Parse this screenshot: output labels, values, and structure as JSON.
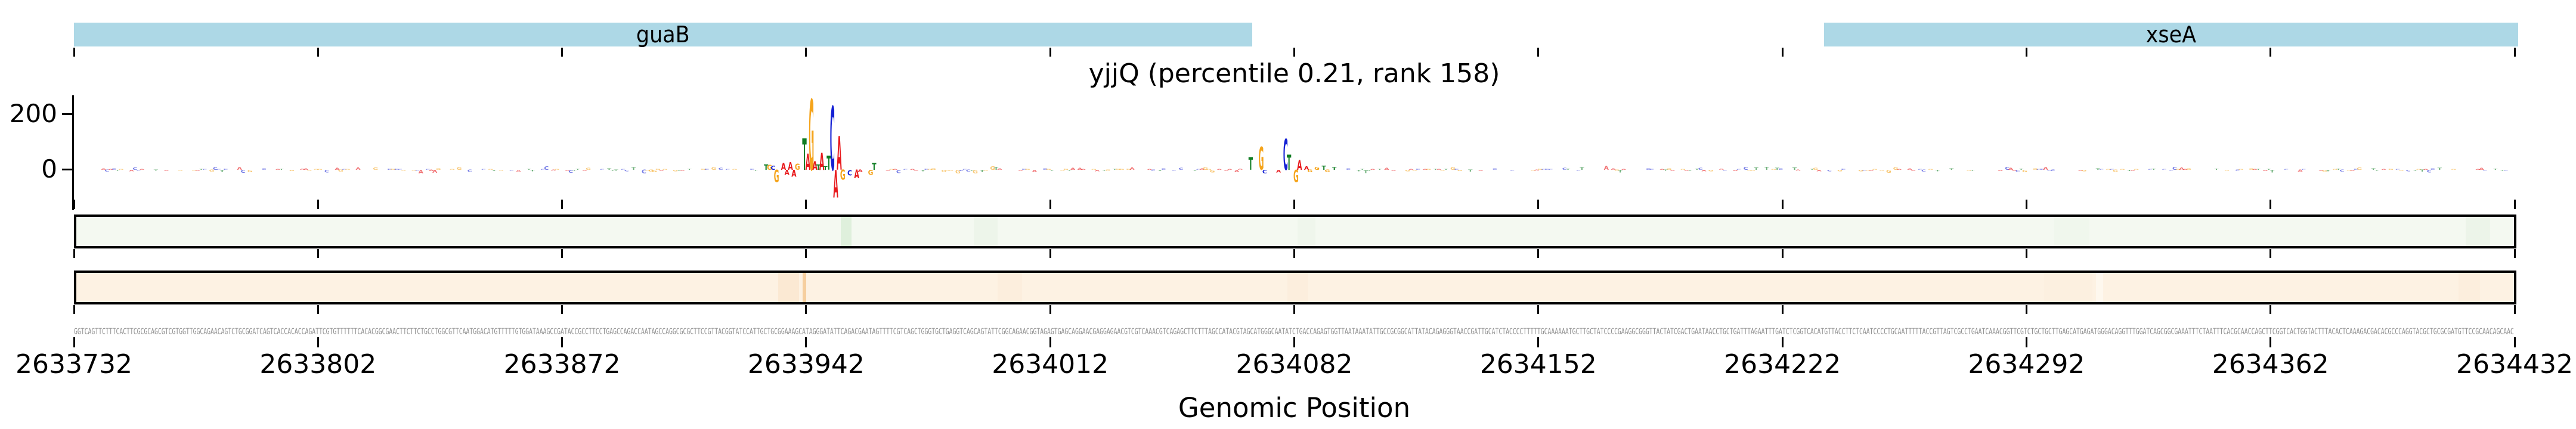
{
  "figure": {
    "title": "yjjQ (percentile 0.21, rank 158)",
    "xlabel": "Genomic Position"
  },
  "colors": {
    "gene_bar": "#add8e6",
    "axis": "#000000",
    "sequence_text": "#8c8c8c",
    "base_A": "#e8191c",
    "base_C": "#1420d4",
    "base_G": "#f5a41b",
    "base_T": "#0f7d23",
    "track_green_fill": "#f4f9f1",
    "track_orange_fill": "#fdf2e3"
  },
  "genes": [
    {
      "name": "guaB",
      "start": 2633732,
      "end": 2634070
    },
    {
      "name": "xseA",
      "start": 2634234,
      "end": 2634433
    }
  ],
  "x_axis": {
    "start": 2633732,
    "end": 2634432,
    "tick_labels": [
      "2633732",
      "2633802",
      "2633872",
      "2633942",
      "2634012",
      "2634082",
      "2634152",
      "2634222",
      "2634292",
      "2634362",
      "2634432"
    ]
  },
  "y_axis": {
    "tick_labels": [
      "200",
      "0"
    ],
    "tick_values": [
      200,
      0
    ]
  },
  "chart_data": {
    "type": "genomic-attribution-logo",
    "title": "yjjQ (percentile 0.21, rank 158)",
    "xlabel": "Genomic Position",
    "x_range": [
      2633732,
      2634432
    ],
    "ylim": [
      -140,
      270
    ],
    "y_ticks": [
      0,
      200
    ],
    "gene_annotations": [
      {
        "name": "guaB",
        "start": 2633732,
        "end": 2634070
      },
      {
        "name": "xseA",
        "start": 2634234,
        "end": 2634433
      }
    ],
    "attribution_letters": [
      [
        2633930,
        "T",
        20
      ],
      [
        2633931,
        "G",
        18
      ],
      [
        2633932,
        "C",
        15
      ],
      [
        2633933,
        "G",
        -45
      ],
      [
        2633935,
        "A",
        25
      ],
      [
        2633936,
        "A",
        -18
      ],
      [
        2633937,
        "A",
        28
      ],
      [
        2633938,
        "A",
        -25
      ],
      [
        2633939,
        "G",
        22
      ],
      [
        2633941,
        "T",
        114
      ],
      [
        2633942,
        "A",
        58
      ],
      [
        2633943,
        "G",
        255
      ],
      [
        2633944,
        "A",
        30
      ],
      [
        2633945,
        "T",
        20
      ],
      [
        2633946,
        "A",
        62
      ],
      [
        2633947,
        "T",
        12
      ],
      [
        2633948,
        "T",
        50
      ],
      [
        2633949,
        "C",
        230
      ],
      [
        2633950,
        "A",
        -100
      ],
      [
        2633951,
        "A",
        122
      ],
      [
        2633952,
        "G",
        -36
      ],
      [
        2633954,
        "C",
        -20
      ],
      [
        2633956,
        "A",
        -30
      ],
      [
        2633957,
        "A",
        -8
      ],
      [
        2633960,
        "G",
        -18
      ],
      [
        2633961,
        "T",
        25
      ],
      [
        2634069,
        "T",
        45
      ],
      [
        2634072,
        "G",
        82
      ],
      [
        2634073,
        "C",
        -13
      ],
      [
        2634077,
        "A",
        -10
      ],
      [
        2634079,
        "C",
        112
      ],
      [
        2634080,
        "T",
        55
      ],
      [
        2634082,
        "G",
        -45
      ],
      [
        2634083,
        "A",
        35
      ],
      [
        2634085,
        "A",
        13
      ],
      [
        2634086,
        "G",
        -9
      ],
      [
        2634088,
        "G",
        11
      ],
      [
        2634090,
        "T",
        15
      ],
      [
        2634091,
        "G",
        -8
      ],
      [
        2634093,
        "T",
        9
      ]
    ],
    "noise": {
      "seed": 7,
      "start": 2633740,
      "end": 2634430,
      "density": 0.55,
      "max_amplitude": 14,
      "opacity": 0.6,
      "exclude": [
        [
          2633928,
          2633963
        ],
        [
          2634067,
          2634096
        ]
      ]
    },
    "tracks": [
      {
        "name": "importance-track-green",
        "fill": "#f4f9f1",
        "stripes": [
          [
            2633952,
            3,
            "#dff0dc"
          ],
          [
            2633990,
            7,
            "#edf5ea"
          ],
          [
            2634083,
            5,
            "#eff6ec"
          ],
          [
            2634300,
            10,
            "#f0f7ed"
          ],
          [
            2634418,
            7,
            "#ecf4e9"
          ]
        ]
      },
      {
        "name": "importance-track-orange",
        "fill": "#fdf2e3",
        "stripes": [
          [
            2633934,
            6,
            "#fbe9d3"
          ],
          [
            2633941,
            1,
            "#f6cf9f"
          ],
          [
            2633997,
            7,
            "#fceedd"
          ],
          [
            2634080,
            6,
            "#fceedd"
          ],
          [
            2634297,
            14,
            "#fcf0e0"
          ],
          [
            2634312,
            2,
            "#fef8ee"
          ],
          [
            2634416,
            6,
            "#fceedd"
          ]
        ]
      }
    ],
    "sequence": "GGTCAGTTCTTTCACTTCGCGCAGCGTCGTGGTTGGCAGAACAGTCTGCGGATCAGTCACCACACCAGATTCGTGTTTTTTCACACGGCGAACTTCTTCTGCCTGGCGTTCAATGGACATGTTTTTGTGGATAAAGCCGATACCGCCTTCCTGAGCCAGACCAATAGCCAGGCGCGCTTCCGTTACGGTATCCATTGCTGCGGAAAGCATAGGGATATTCAGACGAATAGTTTTCGTCAGCTGGGTGCTGAGGTCAGCAGTATTCGGCAGAACGGTAGAGTGAGCAGGAACGAGGAGAACGTCGTCAAACGTCAGAGCTTCTTTAGCCATACGTAGCATGGGCAATATCTGACCAGAGTGGTTAATAAATATTGCCGCGGCATTATACAGAGGGTAACCGATTGCATCTACCCCTTTTTGCAAAAAATGCTTGCTATCCCCGAAGGCGGGTTACTATCGACTGAATAACCTGCTGATTTAGAATTTGATCTCGGTCACATGTTACCTTCTCAATCCCCTGCAATTTTTACCGTTAGTCGCCTGAATCAAACGGTTCGTCTGCTGCTTGAGCATGAGATGGGACAGGTTTGGATCAGCGGCGAAATTTCTAATTTCACGCAACCAGCTTCGGTCACTGGTACTTTACACTCAAAGACGACACGCCCAGGTACGCTGCGCGATGTTCCGCAACAGCAAC"
  }
}
